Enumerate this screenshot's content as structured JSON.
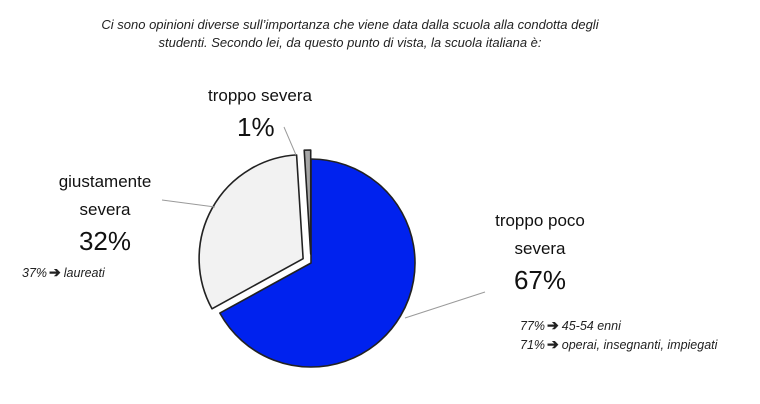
{
  "title_line1": "Ci sono opinioni diverse sull’importanza che viene data dalla scuola alla condotta degli",
  "title_line2": "studenti. Secondo lei, da questo punto di vista, la scuola italiana è:",
  "chart_data": {
    "type": "pie",
    "slices": [
      {
        "label": "troppo poco severa",
        "label_line1": "troppo poco",
        "label_line2": "severa",
        "value": 67,
        "value_label": "67%",
        "color": "#0022ee",
        "exploded": false
      },
      {
        "label": "giustamente severa",
        "label_line1": "giustamente",
        "label_line2": "severa",
        "value": 32,
        "value_label": "32%",
        "color": "#f2f2f2",
        "exploded": true
      },
      {
        "label": "troppo severa",
        "label_line1": "troppo severa",
        "label_line2": "",
        "value": 1,
        "value_label": "1%",
        "color": "#a6a6a6",
        "exploded": true
      }
    ]
  },
  "annotations": {
    "giustamente": [
      {
        "pct": "37%",
        "arrow": "➔",
        "text": "laureati"
      }
    ],
    "troppo_poco": [
      {
        "pct": "77%",
        "arrow": "➔",
        "text": "45-54 enni"
      },
      {
        "pct": "71%",
        "arrow": "➔",
        "text": "operai, insegnanti, impiegati"
      }
    ]
  },
  "colors": {
    "outline": "#222222",
    "leader": "#9a9a9a"
  }
}
